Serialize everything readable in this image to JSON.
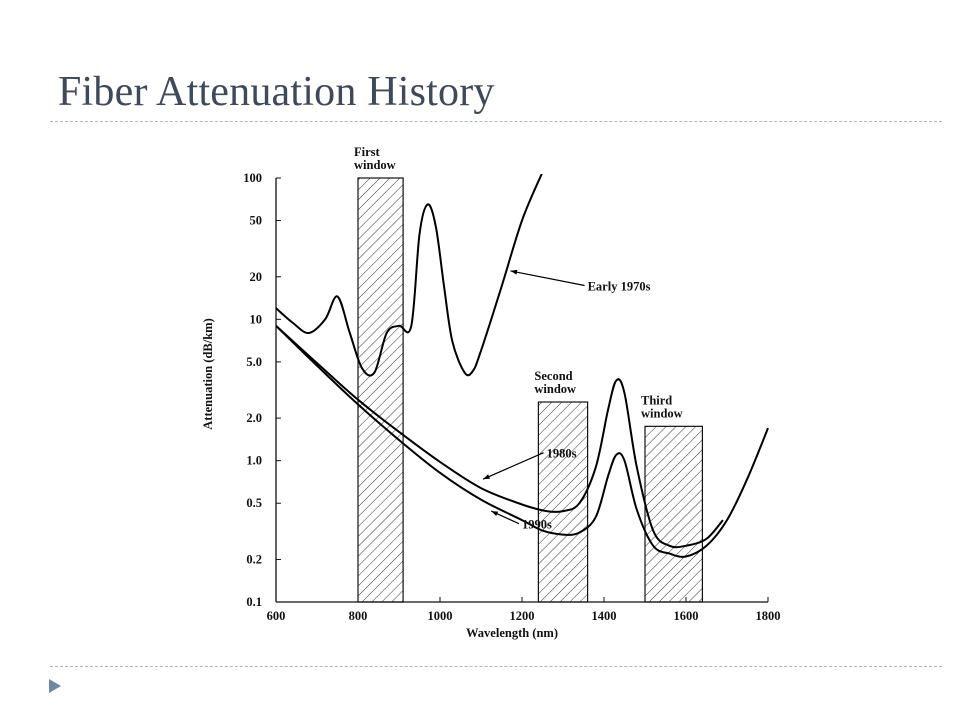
{
  "slide": {
    "title": "Fiber Attenuation History",
    "accent_color": "#3e4a5a",
    "rule_color": "#a9b8c8",
    "bullet_icon": "triangle-bullet-icon"
  },
  "chart_data": {
    "type": "line",
    "title": "",
    "xlabel": "Wavelength (nm)",
    "ylabel": "Attenuation (dB/km)",
    "x_scale": "linear",
    "y_scale": "log",
    "xlim": [
      600,
      1800
    ],
    "ylim": [
      0.1,
      100
    ],
    "grid": false,
    "x_ticks": [
      600,
      800,
      1000,
      1200,
      1400,
      1600,
      1800
    ],
    "x_tick_labels": [
      "600",
      "800",
      "1000",
      "1200",
      "1400",
      "1600",
      "1800"
    ],
    "y_ticks": [
      100,
      50,
      20,
      10,
      5,
      2,
      1,
      0.5,
      0.2,
      0.1
    ],
    "y_tick_labels": [
      "100",
      "50",
      "20",
      "10",
      "5.0",
      "2.0",
      "1.0",
      "0.5",
      "0.2",
      "0.1"
    ],
    "windows": [
      {
        "label_lines": [
          "First",
          "window"
        ],
        "x_range": [
          800,
          910
        ],
        "top": 100
      },
      {
        "label_lines": [
          "Second",
          "window"
        ],
        "x_range": [
          1240,
          1360
        ],
        "top": 2.6
      },
      {
        "label_lines": [
          "Third",
          "window"
        ],
        "x_range": [
          1500,
          1640
        ],
        "top": 1.75
      }
    ],
    "series": [
      {
        "name": "Early 1970s",
        "x": [
          600,
          640,
          680,
          720,
          750,
          780,
          810,
          840,
          870,
          900,
          930,
          950,
          970,
          990,
          1010,
          1030,
          1060,
          1080,
          1100,
          1150,
          1200,
          1250
        ],
        "y": [
          12,
          9.5,
          8,
          10,
          14.5,
          8,
          4.5,
          4.2,
          8,
          9,
          9,
          40,
          65,
          45,
          17,
          7,
          4.2,
          4.3,
          6,
          17,
          50,
          110
        ]
      },
      {
        "name": "1980s",
        "x": [
          600,
          700,
          800,
          900,
          1000,
          1100,
          1200,
          1260,
          1300,
          1340,
          1380,
          1410,
          1430,
          1450,
          1480,
          1520,
          1560,
          1600,
          1650,
          1690
        ],
        "y": [
          9,
          4.9,
          2.7,
          1.6,
          0.98,
          0.64,
          0.49,
          0.44,
          0.44,
          0.5,
          0.9,
          2.3,
          3.7,
          3,
          0.9,
          0.32,
          0.25,
          0.25,
          0.28,
          0.38
        ]
      },
      {
        "name": "1990s",
        "x": [
          600,
          700,
          800,
          900,
          1000,
          1100,
          1200,
          1250,
          1300,
          1340,
          1380,
          1410,
          1430,
          1450,
          1480,
          1520,
          1560,
          1600,
          1650,
          1700,
          1750,
          1800
        ],
        "y": [
          9,
          4.7,
          2.5,
          1.4,
          0.82,
          0.53,
          0.38,
          0.32,
          0.3,
          0.31,
          0.4,
          0.78,
          1.1,
          1.0,
          0.45,
          0.25,
          0.22,
          0.21,
          0.25,
          0.38,
          0.75,
          1.7
        ]
      }
    ]
  }
}
